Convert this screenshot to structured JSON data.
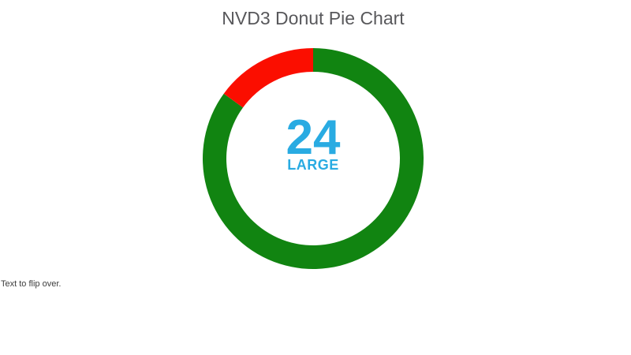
{
  "page": {
    "background": "#ffffff"
  },
  "chart_data": {
    "type": "pie",
    "donut": true,
    "title": "NVD3 Donut Pie Chart",
    "title_color": "#58585b",
    "center_label": "24",
    "center_sublabel": "LARGE",
    "center_label_color": "#29abe2",
    "slices": [
      {
        "name": "green",
        "percent": 85,
        "color": "#118411"
      },
      {
        "name": "red",
        "percent": 15,
        "color": "#fb0e00"
      }
    ],
    "start_angle_deg": 0,
    "direction": "clockwise",
    "outer_radius": 140,
    "inner_radius": 110,
    "legend": "none",
    "grid": false
  },
  "footer_text": "Text to flip over.",
  "footer_text_color": "#3c3c3c"
}
